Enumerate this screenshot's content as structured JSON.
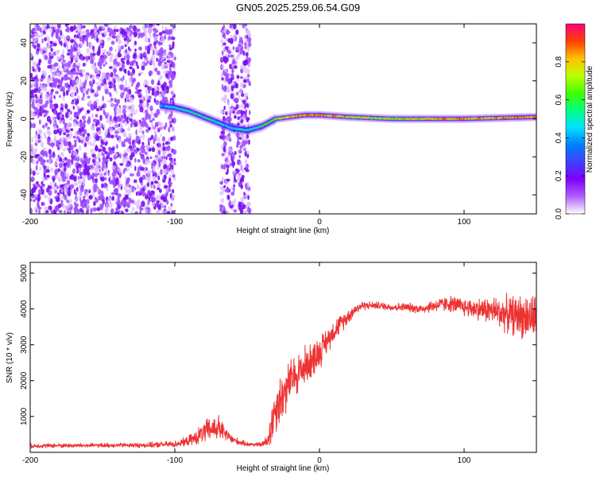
{
  "page_title": "GN05.2025.259.06.54.G09",
  "chart_data": [
    {
      "type": "heatmap",
      "title": "GN05.2025.259.06.54.G09",
      "xlabel": "Height of straight line (km)",
      "ylabel": "Frequency (Hz)",
      "xlim": [
        -200,
        150
      ],
      "ylim": [
        -50,
        50
      ],
      "x_ticks": [
        "-200",
        "-100",
        "0",
        "100"
      ],
      "y_ticks": [
        "-40",
        "-20",
        "0",
        "20",
        "40"
      ],
      "colorbar": {
        "label": "Normalized spectral amplitude",
        "range": [
          0.0,
          1.0
        ],
        "ticks": [
          "0.0",
          "0.2",
          "0.4",
          "0.6",
          "0.8"
        ],
        "colormap": [
          "#ffffff",
          "#b060ff",
          "#8000ff",
          "#4040ff",
          "#0080ff",
          "#00e0ff",
          "#00ff80",
          "#40ff00",
          "#c0ff00",
          "#ffc000",
          "#ff4000",
          "#ff0080"
        ]
      },
      "ridge": {
        "x": [
          -110,
          -100,
          -90,
          -80,
          -70,
          -60,
          -50,
          -45,
          -40,
          -35,
          -30,
          -20,
          -10,
          0,
          20,
          50,
          100,
          150
        ],
        "freq": [
          7,
          6,
          4,
          1,
          -2,
          -5,
          -6,
          -5,
          -4,
          -2,
          0,
          1,
          2,
          2,
          1,
          0,
          0,
          1
        ],
        "amplitude": [
          0.4,
          0.5,
          0.5,
          0.55,
          0.5,
          0.45,
          0.5,
          0.5,
          0.55,
          0.6,
          0.65,
          0.8,
          0.85,
          0.85,
          0.75,
          0.7,
          0.8,
          0.85
        ]
      },
      "noise_regions": [
        {
          "x_from": -200,
          "x_to": -100,
          "amplitude": 0.2
        },
        {
          "x_from": -68,
          "x_to": -48,
          "amplitude": 0.2
        }
      ]
    },
    {
      "type": "line",
      "xlabel": "Height of straight line (km)",
      "ylabel": "SNR (10 * v/v)",
      "xlim": [
        -200,
        150
      ],
      "ylim": [
        0,
        5300
      ],
      "x_ticks": [
        "-200",
        "-100",
        "0",
        "100"
      ],
      "y_ticks": [
        "1000",
        "2000",
        "3000",
        "4000",
        "5000"
      ],
      "series": [
        {
          "color": "#ee3333",
          "x": [
            -200,
            -180,
            -160,
            -140,
            -120,
            -100,
            -92,
            -85,
            -80,
            -75,
            -70,
            -65,
            -60,
            -55,
            -50,
            -45,
            -40,
            -36,
            -33,
            -30,
            -25,
            -20,
            -15,
            -10,
            -5,
            0,
            5,
            10,
            15,
            20,
            25,
            30,
            40,
            50,
            60,
            70,
            80,
            90,
            100,
            110,
            120,
            130,
            140,
            150
          ],
          "y": [
            180,
            190,
            190,
            200,
            200,
            230,
            300,
            420,
            550,
            650,
            700,
            500,
            350,
            280,
            230,
            220,
            220,
            300,
            800,
            1300,
            1600,
            2000,
            2200,
            2400,
            2600,
            2800,
            3100,
            3400,
            3600,
            3800,
            4000,
            4100,
            4100,
            4050,
            4050,
            4000,
            4100,
            4150,
            4050,
            4000,
            3950,
            3850,
            3800,
            3750
          ],
          "noise": [
            60,
            60,
            60,
            60,
            70,
            90,
            120,
            200,
            300,
            350,
            350,
            200,
            120,
            80,
            60,
            60,
            60,
            200,
            600,
            700,
            700,
            600,
            600,
            550,
            500,
            450,
            350,
            300,
            250,
            200,
            150,
            120,
            100,
            110,
            120,
            130,
            180,
            220,
            250,
            300,
            400,
            500,
            600,
            650
          ]
        }
      ]
    }
  ]
}
